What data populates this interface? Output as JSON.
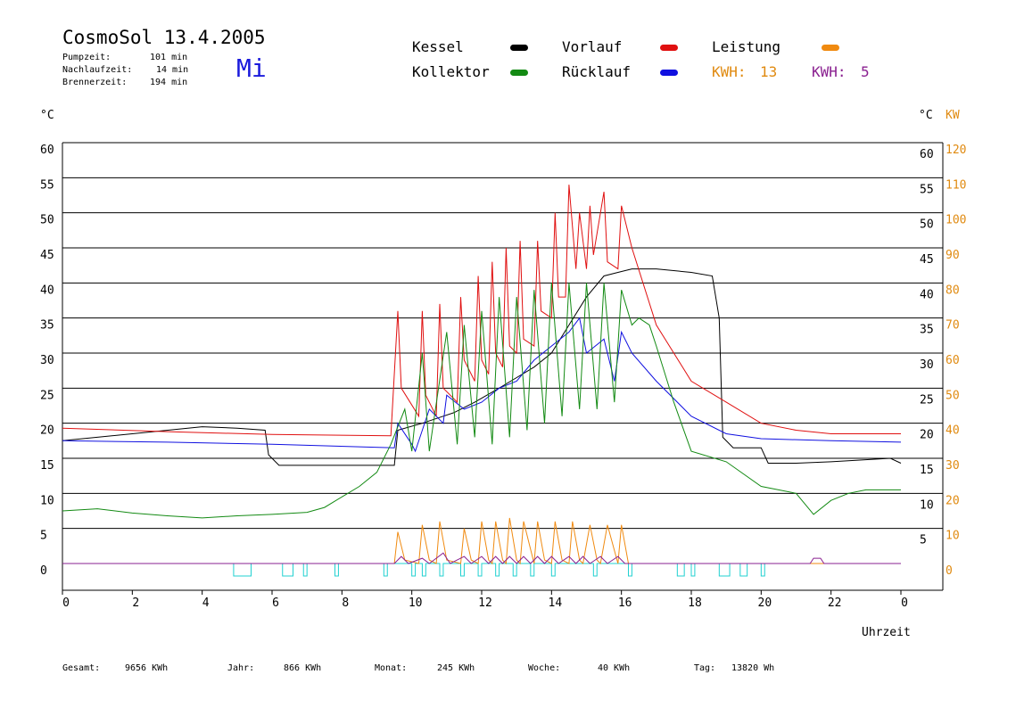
{
  "header": {
    "title": "CosmoSol 13.4.2005",
    "day": "Mi",
    "stats": [
      {
        "label": "Pumpzeit:",
        "value": "101 min"
      },
      {
        "label": "Nachlaufzeit:",
        "value": "14 min"
      },
      {
        "label": "Brennerzeit:",
        "value": "194 min"
      }
    ]
  },
  "legend": {
    "kessel": {
      "label": "Kessel",
      "color": "#000000"
    },
    "vorlauf": {
      "label": "Vorlauf",
      "color": "#e01010"
    },
    "leistung": {
      "label": "Leistung",
      "color": "#f08a10"
    },
    "kollektor": {
      "label": "Kollektor",
      "color": "#138a13"
    },
    "ruecklauf": {
      "label": "Rücklauf",
      "color": "#1010e0"
    },
    "kwh1": {
      "label": "KWH:",
      "value": "13",
      "color": "#e08a10"
    },
    "kwh2": {
      "label": "KWH:",
      "value": "5",
      "color": "#8a2090"
    }
  },
  "axes": {
    "y_left_unit": "°C",
    "y_right_unit": "°C",
    "y_right2_unit": "KW",
    "x_label": "Uhrzeit"
  },
  "footer": [
    {
      "label": "Gesamt:",
      "value": "9656 KWh"
    },
    {
      "label": "Jahr:",
      "value": "866 KWh"
    },
    {
      "label": "Monat:",
      "value": "245 KWh"
    },
    {
      "label": "Woche:",
      "value": "40 KWh"
    },
    {
      "label": "Tag:",
      "value": "13820 Wh"
    }
  ],
  "chart_data": {
    "type": "line",
    "x_range": [
      0,
      24
    ],
    "x_ticks": [
      "0",
      "2",
      "4",
      "6",
      "8",
      "10",
      "12",
      "14",
      "16",
      "18",
      "20",
      "22",
      "0"
    ],
    "y_left_ticks": [
      "0",
      "5",
      "10",
      "15",
      "20",
      "25",
      "30",
      "35",
      "40",
      "45",
      "50",
      "55",
      "60"
    ],
    "y_right_ticks": [
      "5",
      "10",
      "15",
      "20",
      "25",
      "30",
      "35",
      "40",
      "45",
      "50",
      "55",
      "60"
    ],
    "y_right2_ticks": [
      "0",
      "10",
      "20",
      "30",
      "40",
      "50",
      "60",
      "70",
      "80",
      "90",
      "100",
      "110",
      "120"
    ],
    "ylim": [
      0,
      60
    ],
    "y2lim": [
      0,
      120
    ],
    "grid": true,
    "series": [
      {
        "name": "Kessel",
        "color": "#000000",
        "x": [
          0,
          2,
          4,
          5,
          5.8,
          5.9,
          6.2,
          9.5,
          9.6,
          10.3,
          10.9,
          11.2,
          11.8,
          12.5,
          13,
          13.5,
          14,
          14.5,
          15,
          15.5,
          15.9,
          16.3,
          17,
          18,
          18.6,
          18.8,
          18.9,
          19.2,
          20,
          20.2,
          21,
          22,
          23.7,
          24
        ],
        "y": [
          17.5,
          18.5,
          19.5,
          19.3,
          19,
          15.5,
          14,
          14,
          19,
          20,
          21,
          21.5,
          23,
          25,
          26.5,
          28,
          30,
          34,
          38,
          41,
          41.5,
          42,
          42,
          41.5,
          41,
          35,
          18,
          16.5,
          16.5,
          14.3,
          14.3,
          14.5,
          15,
          14.3
        ]
      },
      {
        "name": "Vorlauf",
        "color": "#e01010",
        "x": [
          0,
          3,
          6,
          9.4,
          9.6,
          9.7,
          10.2,
          10.3,
          10.4,
          10.7,
          10.8,
          10.9,
          11.3,
          11.4,
          11.5,
          11.8,
          11.9,
          12,
          12.2,
          12.3,
          12.4,
          12.6,
          12.7,
          12.8,
          13,
          13.1,
          13.2,
          13.5,
          13.6,
          13.7,
          14,
          14.1,
          14.2,
          14.4,
          14.5,
          14.7,
          14.8,
          15,
          15.1,
          15.2,
          15.5,
          15.6,
          15.9,
          16,
          16.3,
          17,
          18,
          19,
          20,
          21,
          22,
          24
        ],
        "y": [
          19.3,
          18.8,
          18.4,
          18.2,
          36,
          25,
          21,
          36,
          24,
          21,
          37,
          25,
          23,
          38,
          29,
          26,
          41,
          29,
          27,
          43,
          30,
          28,
          45,
          31,
          30,
          46,
          32,
          31,
          46,
          36,
          35,
          50,
          38,
          38,
          54,
          42,
          50,
          42,
          51,
          44,
          53,
          43,
          42,
          51,
          45,
          34,
          26,
          23,
          20,
          19,
          18.5,
          18.5
        ]
      },
      {
        "name": "Rücklauf",
        "color": "#1010e0",
        "x": [
          0,
          3,
          6,
          9.5,
          9.6,
          10,
          10.1,
          10.5,
          10.9,
          11,
          11.5,
          12,
          12.5,
          13,
          13.5,
          14,
          14.5,
          14.8,
          15,
          15.5,
          15.8,
          16,
          16.3,
          17,
          18,
          19,
          20,
          22,
          24
        ],
        "y": [
          17.5,
          17.3,
          17,
          16.5,
          20,
          17,
          16,
          22,
          20,
          24,
          22,
          23,
          25,
          26,
          29,
          31,
          33,
          35,
          30,
          32,
          26,
          33,
          30,
          26,
          21,
          18.5,
          17.8,
          17.5,
          17.3
        ]
      },
      {
        "name": "Kollektor",
        "color": "#138a13",
        "x": [
          0,
          1,
          2,
          3,
          4,
          5,
          6,
          7,
          7.5,
          8,
          8.5,
          9,
          9.4,
          9.8,
          10,
          10.3,
          10.5,
          11,
          11.3,
          11.5,
          11.8,
          12,
          12.3,
          12.5,
          12.8,
          13,
          13.3,
          13.5,
          13.8,
          14,
          14.3,
          14.5,
          14.8,
          15,
          15.3,
          15.5,
          15.8,
          16,
          16.3,
          16.5,
          16.8,
          17,
          17.5,
          18,
          19,
          20,
          21,
          21.5,
          22,
          22.5,
          23,
          24
        ],
        "y": [
          7.5,
          7.8,
          7.2,
          6.8,
          6.5,
          6.8,
          7,
          7.3,
          8,
          9.5,
          11,
          13,
          17,
          22,
          16,
          30,
          16,
          33,
          17,
          34,
          18,
          36,
          17,
          38,
          18,
          38,
          19,
          39,
          20,
          40,
          21,
          40,
          22,
          40,
          22,
          40,
          23,
          39,
          34,
          35,
          34,
          31,
          23,
          16,
          14.5,
          11,
          10,
          7,
          9,
          10,
          10.5,
          10.5
        ]
      },
      {
        "name": "Leistung",
        "color": "#f08a10",
        "axis": "kw",
        "x": [
          0,
          9.5,
          9.6,
          9.8,
          10.2,
          10.3,
          10.5,
          10.7,
          10.8,
          11,
          11.4,
          11.5,
          11.7,
          11.9,
          12,
          12.2,
          12.3,
          12.4,
          12.6,
          12.7,
          12.8,
          13,
          13.1,
          13.2,
          13.5,
          13.6,
          13.8,
          14,
          14.1,
          14.3,
          14.5,
          14.6,
          14.8,
          14.9,
          15.1,
          15.3,
          15.4,
          15.6,
          15.9,
          16,
          16.2,
          24
        ],
        "y": [
          0,
          0,
          9,
          1,
          0,
          11,
          1,
          0,
          12,
          1,
          0,
          10,
          1,
          0,
          12,
          1,
          0,
          12,
          1,
          0,
          13,
          1,
          0,
          12,
          0,
          12,
          1,
          0,
          12,
          1,
          0,
          12,
          1,
          0,
          11,
          1,
          0,
          11,
          0,
          11,
          0,
          0
        ]
      },
      {
        "name": "KWH 5",
        "color": "#8a2090",
        "axis": "kw",
        "x": [
          0,
          9.5,
          9.7,
          9.9,
          10.3,
          10.5,
          10.9,
          11.1,
          11.5,
          11.7,
          12,
          12.2,
          12.4,
          12.6,
          12.8,
          13,
          13.2,
          13.4,
          13.6,
          13.8,
          14,
          14.2,
          14.5,
          14.7,
          14.9,
          15.1,
          15.4,
          15.6,
          15.9,
          16.1,
          16.3,
          21.4,
          21.5,
          21.7,
          21.8,
          24
        ],
        "y": [
          0,
          0,
          2,
          0,
          1.5,
          0,
          3,
          0,
          2,
          0,
          2,
          0,
          2,
          0,
          2,
          0,
          2,
          0,
          2,
          0,
          2,
          0,
          2,
          0,
          2,
          0,
          2,
          0,
          2,
          0,
          0,
          0,
          1.5,
          1.5,
          0,
          0
        ]
      },
      {
        "name": "Pumpe",
        "color": "#20d0d0",
        "axis": "kw",
        "pulses": [
          [
            4.9,
            5.4
          ],
          [
            6.3,
            6.6
          ],
          [
            6.9,
            7.0
          ],
          [
            7.8,
            7.9
          ],
          [
            9.2,
            9.3
          ],
          [
            10.0,
            10.1
          ],
          [
            10.3,
            10.4
          ],
          [
            10.8,
            10.9
          ],
          [
            11.4,
            11.5
          ],
          [
            11.9,
            12.0
          ],
          [
            12.4,
            12.5
          ],
          [
            12.9,
            13.0
          ],
          [
            13.4,
            13.5
          ],
          [
            14.0,
            14.1
          ],
          [
            15.2,
            15.3
          ],
          [
            16.2,
            16.3
          ],
          [
            17.6,
            17.8
          ],
          [
            18.0,
            18.1
          ],
          [
            18.8,
            19.1
          ],
          [
            19.4,
            19.6
          ],
          [
            20.0,
            20.1
          ]
        ],
        "level": 2
      }
    ]
  }
}
